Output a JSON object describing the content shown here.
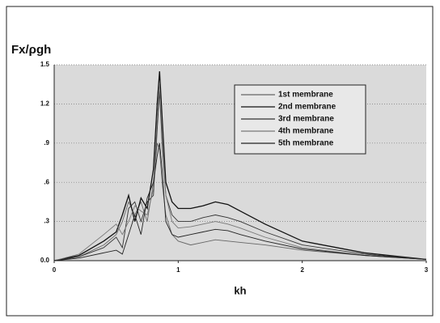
{
  "chart_data": {
    "type": "line",
    "ylabel": "Fx/ρgh",
    "xlabel": "kh",
    "x": [
      0,
      0.2,
      0.4,
      0.5,
      0.55,
      0.6,
      0.65,
      0.7,
      0.75,
      0.8,
      0.83,
      0.85,
      0.87,
      0.9,
      0.95,
      1.0,
      1.1,
      1.2,
      1.3,
      1.4,
      1.5,
      1.7,
      2.0,
      2.5,
      3.0
    ],
    "series": [
      {
        "name": "1st membrane",
        "color": "#666666",
        "values": [
          0,
          0.03,
          0.12,
          0.2,
          0.3,
          0.45,
          0.35,
          0.45,
          0.3,
          0.6,
          0.9,
          0.85,
          0.6,
          0.35,
          0.2,
          0.15,
          0.12,
          0.14,
          0.16,
          0.15,
          0.14,
          0.12,
          0.08,
          0.04,
          0.01
        ]
      },
      {
        "name": "2nd membrane",
        "color": "#111111",
        "values": [
          0,
          0.04,
          0.15,
          0.22,
          0.35,
          0.5,
          0.3,
          0.48,
          0.4,
          0.7,
          1.2,
          1.45,
          1.1,
          0.6,
          0.45,
          0.4,
          0.4,
          0.42,
          0.45,
          0.43,
          0.38,
          0.28,
          0.15,
          0.06,
          0.01
        ]
      },
      {
        "name": "3rd membrane",
        "color": "#333333",
        "values": [
          0,
          0.03,
          0.1,
          0.18,
          0.1,
          0.4,
          0.45,
          0.3,
          0.45,
          0.5,
          1.0,
          1.3,
          0.9,
          0.5,
          0.35,
          0.3,
          0.3,
          0.33,
          0.35,
          0.33,
          0.3,
          0.22,
          0.12,
          0.05,
          0.01
        ]
      },
      {
        "name": "4th membrane",
        "color": "#777777",
        "values": [
          0,
          0.05,
          0.2,
          0.28,
          0.2,
          0.3,
          0.42,
          0.38,
          0.35,
          0.55,
          1.1,
          1.35,
          1.0,
          0.5,
          0.3,
          0.25,
          0.26,
          0.28,
          0.3,
          0.28,
          0.25,
          0.18,
          0.1,
          0.04,
          0.01
        ]
      },
      {
        "name": "5th membrane",
        "color": "#222222",
        "values": [
          0,
          0.02,
          0.06,
          0.08,
          0.05,
          0.2,
          0.35,
          0.2,
          0.48,
          0.6,
          0.8,
          0.9,
          0.7,
          0.3,
          0.2,
          0.18,
          0.2,
          0.22,
          0.24,
          0.23,
          0.2,
          0.15,
          0.09,
          0.04,
          0.01
        ]
      }
    ],
    "xlim": [
      0,
      3
    ],
    "xticks": [
      0,
      1,
      2,
      3
    ],
    "ylim": [
      0,
      1.5
    ],
    "yticks": [
      {
        "value": 0,
        "label": "0.0"
      },
      {
        "value": 0.3,
        "label": ".3"
      },
      {
        "value": 0.6,
        "label": ".6"
      },
      {
        "value": 0.9,
        "label": ".9"
      },
      1.2,
      1.5
    ],
    "grid": true,
    "legend": "upper right"
  }
}
